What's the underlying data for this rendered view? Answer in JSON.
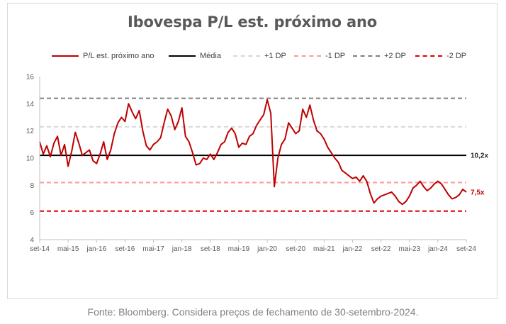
{
  "source_note": "Fonte: Bloomberg. Considera preços de fechamento de 30-setembro-2024.",
  "chart_data": {
    "type": "line",
    "title": "Ibovespa P/L est. próximo ano",
    "xlabel": "",
    "ylabel": "",
    "ylim": [
      4,
      16
    ],
    "y_ticks": [
      4,
      6,
      8,
      10,
      12,
      14,
      16
    ],
    "x_ticks": [
      "set-14",
      "mai-15",
      "jan-16",
      "set-16",
      "mai-17",
      "jan-18",
      "set-18",
      "mai-19",
      "jan-20",
      "set-20",
      "mai-21",
      "jan-22",
      "set-22",
      "mai-23",
      "jan-24",
      "set-24"
    ],
    "grid": false,
    "legend_position": "top",
    "legend": [
      {
        "label": "P/L est. próximo ano",
        "color": "#c00000",
        "style": "solid"
      },
      {
        "label": "Média",
        "color": "#000000",
        "style": "solid"
      },
      {
        "label": "+1 DP",
        "color": "#d9d9d9",
        "style": "dashed"
      },
      {
        "label": "-1 DP",
        "color": "#ff9999",
        "style": "dashed"
      },
      {
        "label": "+2 DP",
        "color": "#7f7f7f",
        "style": "dashed"
      },
      {
        "label": "-2 DP",
        "color": "#e00000",
        "style": "dashed"
      }
    ],
    "reference_lines": {
      "media": 10.2,
      "plus_1dp": 12.3,
      "minus_1dp": 8.2,
      "plus_2dp": 14.4,
      "minus_2dp": 6.1
    },
    "annotations": [
      {
        "text": "10,2x",
        "y": 10.2,
        "color": "#262626"
      },
      {
        "text": "7,5x",
        "y": 7.5,
        "color": "#c00000"
      }
    ],
    "series": [
      {
        "name": "P/L est. próximo ano",
        "color": "#c00000",
        "x": [
          "set-14",
          "out-14",
          "nov-14",
          "dez-14",
          "jan-15",
          "fev-15",
          "mar-15",
          "abr-15",
          "mai-15",
          "jun-15",
          "jul-15",
          "ago-15",
          "set-15",
          "out-15",
          "nov-15",
          "dez-15",
          "jan-16",
          "fev-16",
          "mar-16",
          "abr-16",
          "mai-16",
          "jun-16",
          "jul-16",
          "ago-16",
          "set-16",
          "out-16",
          "nov-16",
          "dez-16",
          "jan-17",
          "fev-17",
          "mar-17",
          "abr-17",
          "mai-17",
          "jun-17",
          "jul-17",
          "ago-17",
          "set-17",
          "out-17",
          "nov-17",
          "dez-17",
          "jan-18",
          "fev-18",
          "mar-18",
          "abr-18",
          "mai-18",
          "jun-18",
          "jul-18",
          "ago-18",
          "set-18",
          "out-18",
          "nov-18",
          "dez-18",
          "jan-19",
          "fev-19",
          "mar-19",
          "abr-19",
          "mai-19",
          "jun-19",
          "jul-19",
          "ago-19",
          "set-19",
          "out-19",
          "nov-19",
          "dez-19",
          "jan-20",
          "fev-20",
          "mar-20",
          "abr-20",
          "mai-20",
          "jun-20",
          "jul-20",
          "ago-20",
          "set-20",
          "out-20",
          "nov-20",
          "dez-20",
          "jan-21",
          "fev-21",
          "mar-21",
          "abr-21",
          "mai-21",
          "jun-21",
          "jul-21",
          "ago-21",
          "set-21",
          "out-21",
          "nov-21",
          "dez-21",
          "jan-22",
          "fev-22",
          "mar-22",
          "abr-22",
          "mai-22",
          "jun-22",
          "jul-22",
          "ago-22",
          "set-22",
          "out-22",
          "nov-22",
          "dez-22",
          "jan-23",
          "fev-23",
          "mar-23",
          "abr-23",
          "mai-23",
          "jun-23",
          "jul-23",
          "ago-23",
          "set-23",
          "out-23",
          "nov-23",
          "dez-23",
          "jan-24",
          "fev-24",
          "mar-24",
          "abr-24",
          "mai-24",
          "jun-24",
          "jul-24",
          "ago-24",
          "set-24"
        ],
        "values": [
          11.2,
          10.3,
          10.9,
          10.1,
          11.1,
          11.6,
          10.2,
          11.0,
          9.4,
          10.5,
          11.9,
          11.1,
          10.2,
          10.4,
          10.6,
          9.8,
          9.6,
          10.3,
          11.2,
          9.9,
          10.6,
          11.8,
          12.6,
          13.0,
          12.7,
          14.0,
          13.4,
          12.9,
          13.5,
          12.0,
          10.9,
          10.6,
          11.0,
          11.2,
          11.5,
          12.6,
          13.6,
          13.1,
          12.1,
          12.7,
          13.7,
          11.6,
          11.2,
          10.4,
          9.5,
          9.6,
          10.0,
          9.9,
          10.3,
          9.9,
          10.4,
          11.0,
          11.2,
          11.9,
          12.2,
          11.8,
          10.8,
          11.1,
          11.0,
          11.6,
          11.8,
          12.4,
          12.8,
          13.2,
          14.3,
          13.3,
          7.9,
          10.0,
          11.0,
          11.4,
          12.6,
          12.2,
          11.8,
          12.0,
          13.6,
          13.0,
          13.9,
          12.8,
          12.0,
          11.8,
          11.4,
          10.8,
          10.4,
          10.0,
          9.7,
          9.1,
          8.9,
          8.7,
          8.5,
          8.6,
          8.3,
          8.7,
          8.3,
          7.4,
          6.7,
          7.0,
          7.2,
          7.3,
          7.4,
          7.5,
          7.2,
          6.8,
          6.6,
          6.8,
          7.2,
          7.8,
          8.0,
          8.3,
          7.9,
          7.6,
          7.8,
          8.1,
          8.3,
          8.1,
          7.7,
          7.3,
          7.0,
          7.1,
          7.3,
          7.7,
          7.5
        ]
      }
    ]
  }
}
